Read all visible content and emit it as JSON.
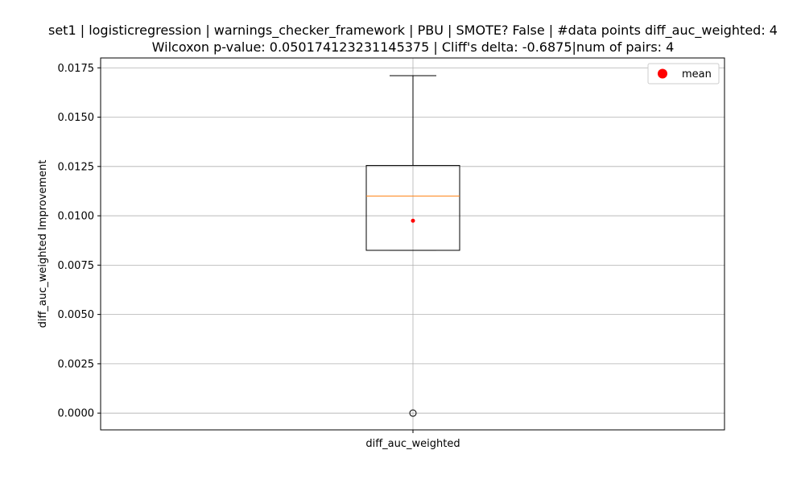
{
  "chart_data": {
    "type": "box",
    "title_line1": "set1 | logisticregression | warnings_checker_framework | PBU | SMOTE? False | #data points diff_auc_weighted: 4",
    "title_line2": "Wilcoxon p-value: 0.050174123231145375 | Cliff's delta: -0.6875|num of pairs: 4",
    "xlabel": "",
    "ylabel": "diff_auc_weighted Improvement",
    "categories": [
      "diff_auc_weighted"
    ],
    "ylim": [
      -0.00085,
      0.018
    ],
    "yticks": [
      0.0,
      0.0025,
      0.005,
      0.0075,
      0.01,
      0.0125,
      0.015,
      0.0175
    ],
    "ytick_labels": [
      "0.0000",
      "0.0025",
      "0.0050",
      "0.0075",
      "0.0100",
      "0.0125",
      "0.0150",
      "0.0175"
    ],
    "grid": true,
    "box": {
      "whisker_low": 0.00825,
      "q1": 0.00825,
      "median": 0.011,
      "q3": 0.01255,
      "whisker_high": 0.0171,
      "mean": 0.00975,
      "outliers": [
        0.0
      ]
    },
    "legend": {
      "position": "top-right",
      "entries": [
        {
          "label": "mean",
          "color": "#ff0000"
        }
      ]
    },
    "colors": {
      "median": "#ff7f0e",
      "mean": "#ff0000",
      "grid": "#b0b0b0",
      "box": "#000000"
    }
  }
}
